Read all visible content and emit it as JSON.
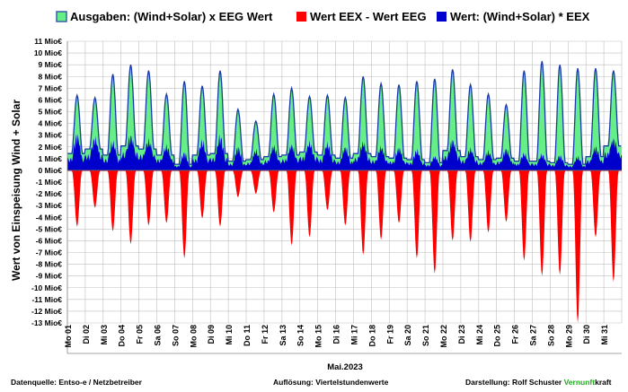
{
  "chart_data": {
    "type": "area",
    "xlabel": "Mai.2023",
    "ylabel": "Wert von Einspeisung Wind + Solar",
    "ylim": [
      -13,
      11
    ],
    "yticks": [
      {
        "v": 11,
        "label": "11 Mio€"
      },
      {
        "v": 10,
        "label": "10 Mio€"
      },
      {
        "v": 9,
        "label": "9 Mio€"
      },
      {
        "v": 8,
        "label": "8 Mio€"
      },
      {
        "v": 7,
        "label": "7 Mio€"
      },
      {
        "v": 6,
        "label": "6 Mio€"
      },
      {
        "v": 5,
        "label": "5 Mio€"
      },
      {
        "v": 4,
        "label": "4 Mio€"
      },
      {
        "v": 3,
        "label": "3 Mio€"
      },
      {
        "v": 2,
        "label": "2 Mio€"
      },
      {
        "v": 1,
        "label": "1 Mio€"
      },
      {
        "v": 0,
        "label": "0 Mio€"
      },
      {
        "v": -1,
        "label": "-1 Mio€"
      },
      {
        "v": -2,
        "label": "-2 Mio€"
      },
      {
        "v": -3,
        "label": "-3 Mio€"
      },
      {
        "v": -4,
        "label": "-4 Mio€"
      },
      {
        "v": -5,
        "label": "-5 Mio€"
      },
      {
        "v": -6,
        "label": "-6 Mio€"
      },
      {
        "v": -7,
        "label": "-7 Mio€"
      },
      {
        "v": -8,
        "label": "-8 Mio€"
      },
      {
        "v": -9,
        "label": "-9 Mio€"
      },
      {
        "v": -10,
        "label": "-10 Mio€"
      },
      {
        "v": -11,
        "label": "-11 Mio€"
      },
      {
        "v": -12,
        "label": "-12 Mio€"
      },
      {
        "v": -13,
        "label": "-13 Mio€"
      }
    ],
    "categories": [
      "Mo 01",
      "Di 02",
      "Mi 03",
      "Do 04",
      "Fr 05",
      "Sa 06",
      "So 07",
      "Mo 08",
      "Di 09",
      "Mi 10",
      "Do 11",
      "Fr 12",
      "Sa 13",
      "So 14",
      "Mo 15",
      "Di 16",
      "Mi 17",
      "Do 18",
      "Fr 19",
      "Sa 20",
      "So 21",
      "Mo 22",
      "Di 23",
      "Mi 24",
      "Do 25",
      "Fr 26",
      "Sa 27",
      "So 28",
      "Mo 29",
      "Di 30",
      "Mi 31"
    ],
    "series": [
      {
        "name": "Ausgaben: (Wind+Solar) x EEG Wert",
        "color": "#66ee88",
        "daily_peak": [
          6.4,
          6.2,
          8.2,
          9.0,
          8.5,
          6.5,
          7.6,
          7.2,
          8.5,
          5.2,
          4.2,
          6.5,
          7.0,
          6.3,
          6.4,
          6.2,
          8.0,
          7.4,
          7.3,
          7.6,
          7.8,
          8.6,
          7.3,
          6.5,
          5.6,
          8.5,
          9.3,
          9.0,
          8.7,
          8.7,
          8.5
        ]
      },
      {
        "name": "Wert EEX - Wert EEG",
        "color": "#ff0000",
        "daily_min": [
          -4.8,
          -3.2,
          -5.2,
          -6.3,
          -4.7,
          -4.5,
          -7.5,
          -4.1,
          -4.8,
          -2.3,
          -2.0,
          -3.6,
          -6.4,
          -5.7,
          -3.4,
          -4.7,
          -7.2,
          -5.9,
          -4.5,
          -7.5,
          -8.8,
          -6.0,
          -6.1,
          -5.3,
          -4.4,
          -7.7,
          -9.0,
          -8.9,
          -13.0,
          -5.7,
          -9.5
        ]
      },
      {
        "name": "Wert: (Wind+Solar) * EEX",
        "color": "#0000cc",
        "daily_peak": [
          3.4,
          3.0,
          2.7,
          3.2,
          2.8,
          2.3,
          1.7,
          2.8,
          3.2,
          2.2,
          1.9,
          2.3,
          2.4,
          2.6,
          2.5,
          2.2,
          2.6,
          2.2,
          2.1,
          1.9,
          1.3,
          2.8,
          2.0,
          1.8,
          2.0,
          1.6,
          1.5,
          1.4,
          1.3,
          2.2,
          2.9
        ],
        "daily_base": [
          1.1,
          1.4,
          1.0,
          1.6,
          1.4,
          1.0,
          0.4,
          1.0,
          1.1,
          0.6,
          0.7,
          0.9,
          1.0,
          1.2,
          1.0,
          0.8,
          1.1,
          0.9,
          0.8,
          0.7,
          0.5,
          1.3,
          0.9,
          0.7,
          0.8,
          0.6,
          0.6,
          0.5,
          0.4,
          0.9,
          1.6
        ]
      }
    ],
    "grid": true,
    "legend": "top"
  },
  "footer": {
    "source_label": "Datenquelle:",
    "source_value": "Entso-e  / Netzbetreiber",
    "resolution_label": "Auflösung:",
    "resolution_value": "Viertelstundenwerte",
    "author_label": "Darstellung:",
    "author_value": "Rolf Schuster",
    "brand_green": "Vernunft",
    "brand_black": "kraft"
  }
}
